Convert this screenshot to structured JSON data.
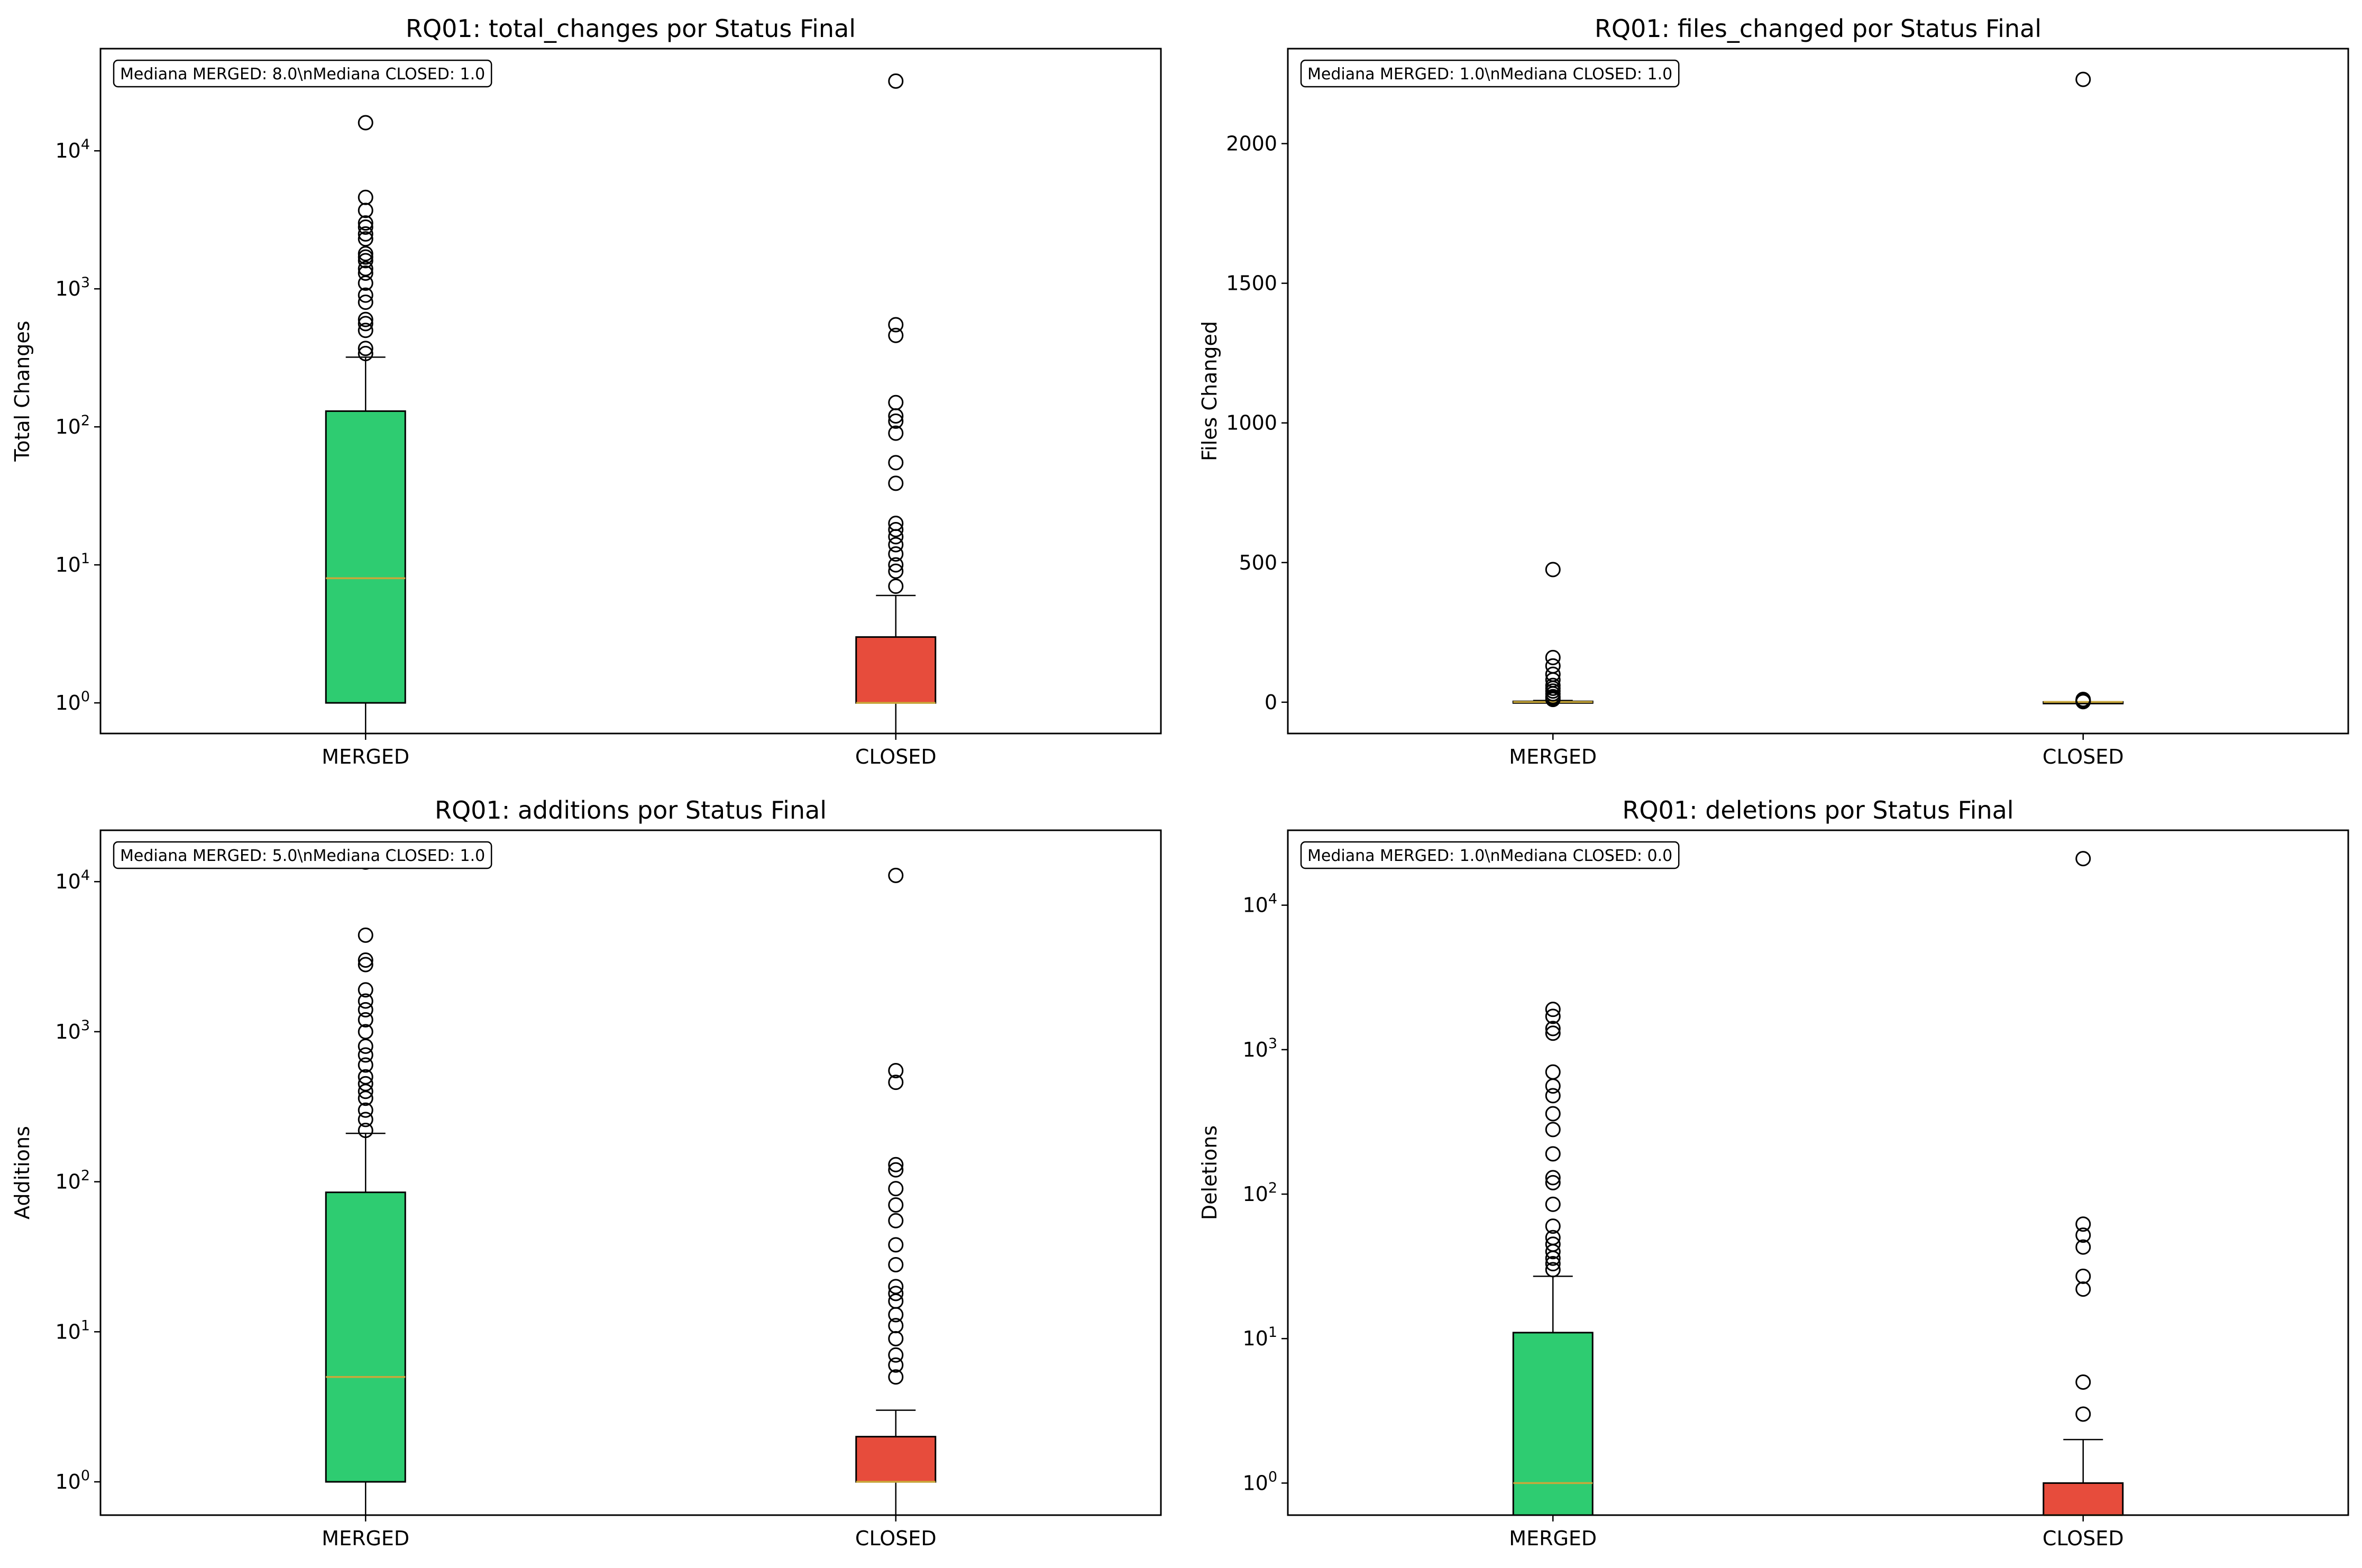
{
  "chart_data": [
    {
      "type": "box",
      "title": "RQ01: total_changes por Status Final",
      "ylabel": "Total Changes",
      "yscale": "log",
      "ylim": [
        0.6,
        55000
      ],
      "yticks": [
        1,
        10,
        100,
        1000,
        10000
      ],
      "ytick_labels": [
        "10^0",
        "10^1",
        "10^2",
        "10^3",
        "10^4"
      ],
      "annotation": "Mediana MERGED: 8.0\\nMediana CLOSED: 1.0",
      "categories": [
        "MERGED",
        "CLOSED"
      ],
      "colors": [
        "#2ecc71",
        "#e74c3c"
      ],
      "boxes": [
        {
          "name": "MERGED",
          "whisker_low": 0.6,
          "q1": 1,
          "median": 8,
          "q3": 130,
          "whisker_high": 320,
          "fliers": [
            340,
            370,
            500,
            560,
            600,
            800,
            900,
            1100,
            1300,
            1400,
            1600,
            1700,
            1800,
            2300,
            2500,
            2800,
            3000,
            3700,
            4600,
            16000
          ]
        },
        {
          "name": "CLOSED",
          "whisker_low": 0.6,
          "q1": 1,
          "median": 1,
          "q3": 3,
          "whisker_high": 6,
          "fliers": [
            7,
            9,
            10,
            12,
            14,
            16,
            18,
            20,
            39,
            55,
            90,
            110,
            120,
            150,
            460,
            550,
            32000
          ]
        }
      ]
    },
    {
      "type": "box",
      "title": "RQ01: files_changed por Status Final",
      "ylabel": "Files Changed",
      "yscale": "linear",
      "ylim": [
        -112,
        2340
      ],
      "yticks": [
        0,
        500,
        1000,
        1500,
        2000
      ],
      "ytick_labels": [
        "0",
        "500",
        "1000",
        "1500",
        "2000"
      ],
      "annotation": "Mediana MERGED: 1.0\\nMediana CLOSED: 1.0",
      "categories": [
        "MERGED",
        "CLOSED"
      ],
      "colors": [
        "#2ecc71",
        "#e74c3c"
      ],
      "boxes": [
        {
          "name": "MERGED",
          "whisker_low": 0,
          "q1": 1,
          "median": 1,
          "q3": 3,
          "whisker_high": 6,
          "fliers": [
            10,
            15,
            20,
            30,
            40,
            50,
            60,
            80,
            100,
            130,
            160,
            475
          ]
        },
        {
          "name": "CLOSED",
          "whisker_low": 1,
          "q1": 1,
          "median": 1,
          "q3": 1,
          "whisker_high": 1,
          "fliers": [
            2,
            3,
            4,
            6,
            8,
            10,
            2230
          ]
        }
      ]
    },
    {
      "type": "box",
      "title": "RQ01: additions por Status Final",
      "ylabel": "Additions",
      "yscale": "log",
      "ylim": [
        0.6,
        22000
      ],
      "yticks": [
        1,
        10,
        100,
        1000,
        10000
      ],
      "ytick_labels": [
        "10^0",
        "10^1",
        "10^2",
        "10^3",
        "10^4"
      ],
      "annotation": "Mediana MERGED: 5.0\\nMediana CLOSED: 1.0",
      "categories": [
        "MERGED",
        "CLOSED"
      ],
      "colors": [
        "#2ecc71",
        "#e74c3c"
      ],
      "boxes": [
        {
          "name": "MERGED",
          "whisker_low": 0.6,
          "q1": 1,
          "median": 5,
          "q3": 85,
          "whisker_high": 210,
          "fliers": [
            220,
            260,
            300,
            360,
            400,
            450,
            500,
            600,
            700,
            800,
            1000,
            1200,
            1400,
            1600,
            1900,
            2800,
            3000,
            4400,
            13500
          ]
        },
        {
          "name": "CLOSED",
          "whisker_low": 0.6,
          "q1": 1,
          "median": 1,
          "q3": 2,
          "whisker_high": 3,
          "fliers": [
            5,
            6,
            7,
            9,
            11,
            13,
            16,
            18,
            20,
            28,
            38,
            55,
            70,
            90,
            120,
            130,
            460,
            550,
            11000
          ]
        }
      ]
    },
    {
      "type": "box",
      "title": "RQ01: deletions por Status Final",
      "ylabel": "Deletions",
      "yscale": "log",
      "ylim": [
        0.6,
        33000
      ],
      "yticks": [
        1,
        10,
        100,
        1000,
        10000
      ],
      "ytick_labels": [
        "10^0",
        "10^1",
        "10^2",
        "10^3",
        "10^4"
      ],
      "annotation": "Mediana MERGED: 1.0\\nMediana CLOSED: 0.0",
      "categories": [
        "MERGED",
        "CLOSED"
      ],
      "colors": [
        "#2ecc71",
        "#e74c3c"
      ],
      "boxes": [
        {
          "name": "MERGED",
          "whisker_low": 0.6,
          "q1": 0.6,
          "median": 1,
          "q3": 11,
          "whisker_high": 27,
          "fliers": [
            30,
            33,
            36,
            40,
            45,
            50,
            60,
            85,
            120,
            130,
            190,
            280,
            360,
            480,
            560,
            700,
            1300,
            1400,
            1700,
            1900
          ]
        },
        {
          "name": "CLOSED",
          "whisker_low": 0.6,
          "q1": 0.6,
          "median": 0.6,
          "q3": 1,
          "whisker_high": 2,
          "fliers": [
            3,
            5,
            22,
            27,
            43,
            52,
            62,
            21000
          ]
        }
      ]
    }
  ]
}
